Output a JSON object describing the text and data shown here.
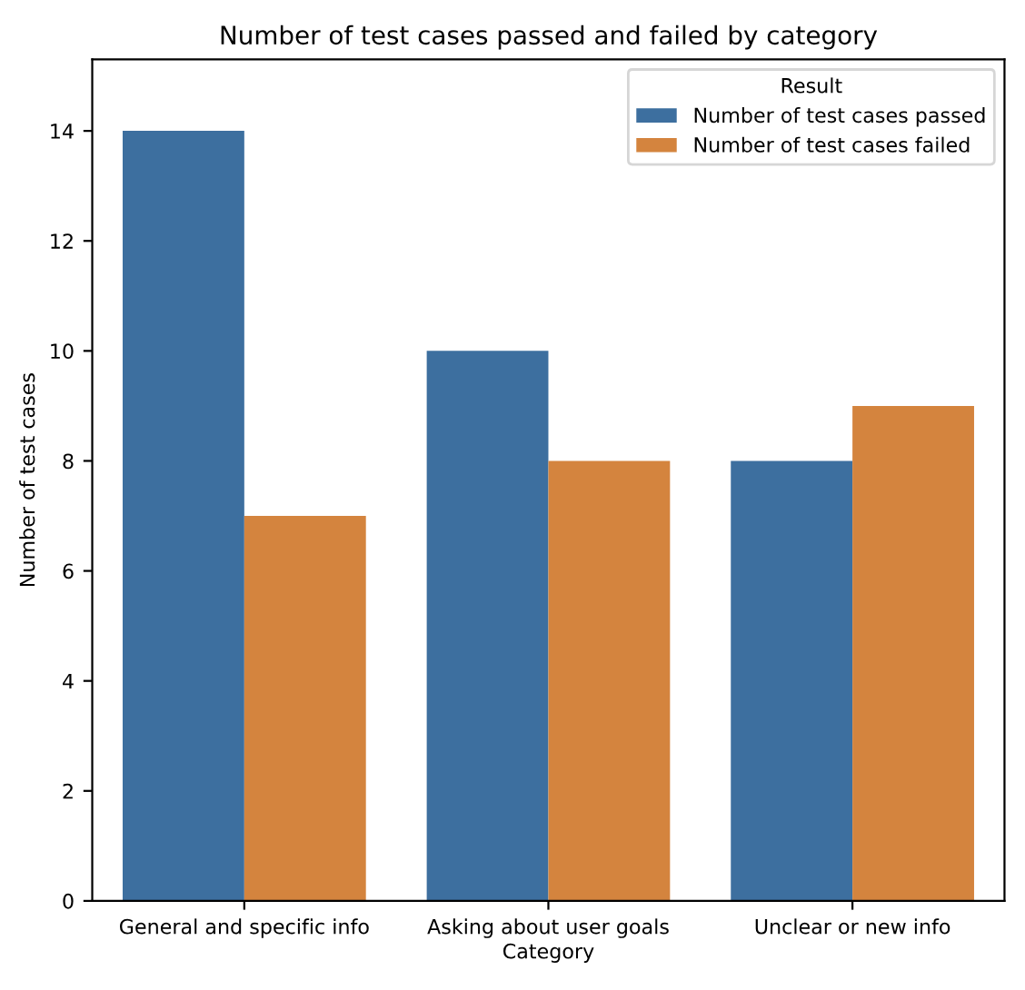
{
  "chart_data": {
    "type": "bar",
    "title": "Number of test cases passed and failed by category",
    "xlabel": "Category",
    "ylabel": "Number of test cases",
    "categories": [
      "General and specific info",
      "Asking about user goals",
      "Unclear or new info"
    ],
    "series": [
      {
        "name": "Number of test cases passed",
        "color": "#3d6f9f",
        "values": [
          14,
          10,
          8
        ]
      },
      {
        "name": "Number of test cases failed",
        "color": "#d4843e",
        "values": [
          7,
          8,
          9
        ]
      }
    ],
    "ylim": [
      0,
      15.3
    ],
    "yticks": [
      0,
      2,
      4,
      6,
      8,
      10,
      12,
      14
    ],
    "grid": false,
    "legend": "top right",
    "legend_title": "Result"
  }
}
